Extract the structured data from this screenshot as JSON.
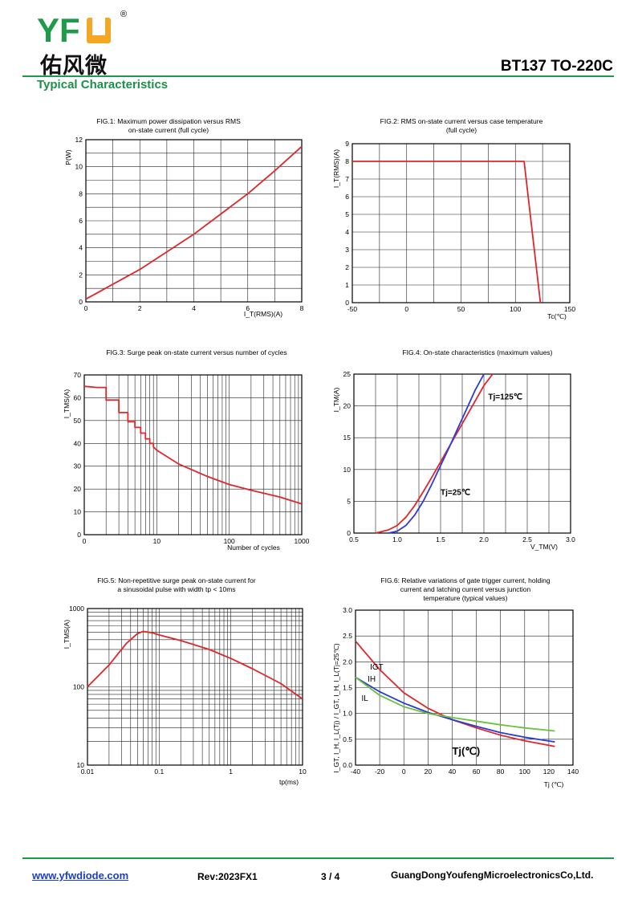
{
  "header": {
    "logo_text": "YFW",
    "logo_chinese": "佑风微",
    "registered_mark": "®",
    "part_number": "BT137 TO-220C",
    "section_title": "Typical Characteristics"
  },
  "colors": {
    "accent_green": "#1d9a4a",
    "curve_red": "#e0262a",
    "curve_blue": "#2a3bd6",
    "curve_green": "#6cc23a",
    "logo_orange": "#f5a623"
  },
  "footer": {
    "url": "www.yfwdiode.com",
    "revision": "Rev:2023FX1",
    "page": "3 / 4",
    "company": "GuangDongYoufengMicroelectronicsCo,Ltd."
  },
  "chart_data": [
    {
      "type": "line",
      "title": [
        "FIG.1: Maximum power dissipation versus RMS",
        "on-state current (full cycle)"
      ],
      "ylabel": "P(W)",
      "xlabel": "I_T(RMS)(A)",
      "xlim": [
        0,
        8
      ],
      "ylim": [
        0,
        12
      ],
      "xticks": [
        0,
        2,
        4,
        6,
        8
      ],
      "yticks": [
        0,
        2,
        4,
        6,
        8,
        10,
        12
      ],
      "series": [
        {
          "color": "red",
          "x": [
            0,
            1,
            2,
            3,
            4,
            5,
            6,
            7,
            8
          ],
          "y": [
            0.2,
            1.3,
            2.4,
            3.7,
            5.0,
            6.5,
            8.0,
            9.7,
            11.5
          ]
        }
      ]
    },
    {
      "type": "line",
      "title": [
        "FIG.2: RMS on-state current versus case temperature",
        "(full cycle)"
      ],
      "ylabel": "I_T(RMS)(A)",
      "xlabel": "Tc(℃)",
      "xlim": [
        -50,
        150
      ],
      "ylim": [
        0,
        9
      ],
      "xticks": [
        -50,
        0,
        50,
        100,
        150
      ],
      "yticks": [
        0,
        1,
        2,
        3,
        4,
        5,
        6,
        7,
        8,
        9
      ],
      "series": [
        {
          "color": "red",
          "x": [
            -50,
            108,
            123
          ],
          "y": [
            8,
            8,
            0
          ]
        }
      ]
    },
    {
      "type": "line",
      "title": [
        "FIG.3: Surge peak on-state current versus number of cycles"
      ],
      "ylabel": "I_TMS(A)",
      "xlabel": "Number of cycles",
      "xscale": "log",
      "xlim": [
        1,
        1000
      ],
      "ylim": [
        0,
        70
      ],
      "xticks": [
        1,
        10,
        100,
        1000
      ],
      "xticklabels": [
        "0",
        "10",
        "100",
        "1000"
      ],
      "yticks": [
        0,
        10,
        20,
        30,
        40,
        50,
        60,
        70
      ],
      "series": [
        {
          "color": "red",
          "x": [
            1,
            1.5,
            2,
            2,
            3,
            3,
            4,
            4,
            5,
            5,
            6,
            6,
            7,
            7,
            8,
            8,
            9,
            9,
            10,
            20,
            50,
            100,
            200,
            500,
            1000
          ],
          "y": [
            65,
            64.5,
            64.5,
            59,
            59,
            53.5,
            53.5,
            49.5,
            49.5,
            47,
            47,
            44.5,
            44.5,
            42,
            42,
            40,
            40,
            38.5,
            37,
            31,
            25.5,
            22,
            19.5,
            16.5,
            13.5
          ]
        }
      ]
    },
    {
      "type": "line",
      "title": [
        "FIG.4: On-state characteristics (maximum values)"
      ],
      "ylabel": "I_TM(A)",
      "xlabel": "V_TM(V)",
      "xlim": [
        0.5,
        3.0
      ],
      "ylim": [
        0,
        25
      ],
      "xticks": [
        0.5,
        1.0,
        1.5,
        2.0,
        2.5,
        3.0
      ],
      "xticklabels": [
        "0.5",
        "1.0",
        "1.5",
        "2.0",
        "2.5",
        "3.0"
      ],
      "yticks": [
        0,
        5,
        10,
        15,
        20,
        25
      ],
      "annotations": [
        {
          "text": "Tj=125℃",
          "x": 2.05,
          "y": 21
        },
        {
          "text": "Tj=25℃",
          "x": 1.5,
          "y": 6
        }
      ],
      "series": [
        {
          "name": "Tj=125℃",
          "color": "red",
          "x": [
            0.75,
            0.9,
            1.0,
            1.1,
            1.2,
            1.3,
            1.4,
            1.5,
            1.6,
            1.7,
            1.8,
            1.9,
            2.0,
            2.1
          ],
          "y": [
            0,
            0.5,
            1.2,
            2.5,
            4.3,
            6.5,
            8.8,
            11.2,
            13.6,
            16.0,
            18.4,
            20.8,
            23.2,
            25
          ]
        },
        {
          "name": "Tj=25℃",
          "color": "blue",
          "x": [
            0.9,
            1.0,
            1.1,
            1.2,
            1.3,
            1.4,
            1.5,
            1.6,
            1.7,
            1.8,
            1.9,
            2.0
          ],
          "y": [
            0,
            0.3,
            1.2,
            2.8,
            5.0,
            7.7,
            10.6,
            13.5,
            16.5,
            19.5,
            22.5,
            25
          ]
        }
      ]
    },
    {
      "type": "line",
      "title": [
        "FIG.5: Non-repetitive surge peak on-state current for",
        "a sinusoidal pulse with width tp < 10ms"
      ],
      "ylabel": "I_TMS(A)",
      "xlabel": "tp(ms)",
      "xscale": "log",
      "yscale": "log",
      "xlim": [
        0.01,
        10
      ],
      "ylim": [
        10,
        1000
      ],
      "xticks": [
        0.01,
        0.1,
        1,
        10
      ],
      "xticklabels": [
        "0.01",
        "0.1",
        "1",
        "10"
      ],
      "yticks": [
        10,
        100,
        1000
      ],
      "yticklabels": [
        "10",
        "100",
        "1000"
      ],
      "series": [
        {
          "color": "red",
          "x": [
            0.01,
            0.02,
            0.035,
            0.05,
            0.06,
            0.08,
            0.1,
            0.2,
            0.5,
            1,
            2,
            5,
            10
          ],
          "y": [
            100,
            190,
            360,
            480,
            510,
            490,
            460,
            390,
            300,
            230,
            170,
            110,
            70
          ]
        }
      ]
    },
    {
      "type": "line",
      "title": [
        "FIG.6: Relative variations of gate trigger current, holding",
        "current and latching current versus junction",
        "temperature (typical values)"
      ],
      "ylabel": "I_GT, I_H, I_L(Tj) / I_GT, I_H, I_L(Tj=25℃)",
      "xlabel": "Tj (℃)",
      "xlim": [
        -40,
        140
      ],
      "ylim": [
        0,
        3.0
      ],
      "xticks": [
        -40,
        -20,
        0,
        20,
        40,
        60,
        80,
        100,
        120,
        140
      ],
      "yticks": [
        0,
        0.5,
        1.0,
        1.5,
        2.0,
        2.5,
        3.0
      ],
      "yticklabels": [
        "0.0",
        "0.5",
        "1.0",
        "1.5",
        "2.0",
        "2.5",
        "3.0"
      ],
      "annotations": [
        {
          "text": "Tj(℃)",
          "x": 40,
          "y": 0.2
        }
      ],
      "series": [
        {
          "name": "IGT",
          "color": "red",
          "x": [
            -40,
            -20,
            0,
            20,
            40,
            60,
            80,
            100,
            125
          ],
          "y": [
            2.4,
            1.85,
            1.4,
            1.1,
            0.88,
            0.72,
            0.58,
            0.47,
            0.36
          ]
        },
        {
          "name": "IH",
          "color": "blue",
          "x": [
            -40,
            -20,
            0,
            20,
            40,
            60,
            80,
            100,
            125
          ],
          "y": [
            1.7,
            1.42,
            1.2,
            1.02,
            0.88,
            0.75,
            0.63,
            0.54,
            0.45
          ]
        },
        {
          "name": "IL",
          "color": "green",
          "x": [
            -40,
            -20,
            0,
            20,
            40,
            60,
            80,
            100,
            125
          ],
          "y": [
            1.7,
            1.35,
            1.13,
            1.0,
            0.92,
            0.85,
            0.78,
            0.72,
            0.66
          ]
        }
      ]
    }
  ]
}
